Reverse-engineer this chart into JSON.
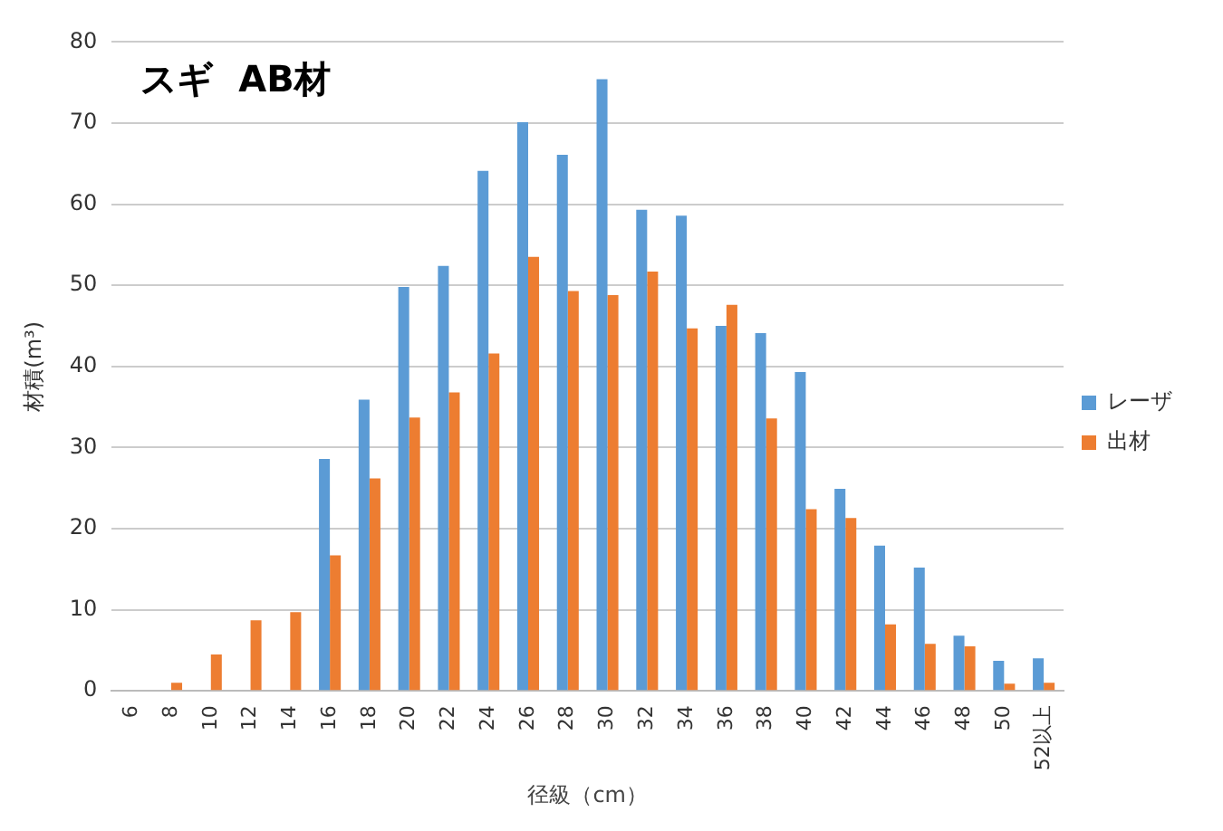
{
  "chart_data": {
    "type": "bar",
    "title": "スギ  AB材",
    "xlabel": "径級（cm）",
    "ylabel": "材積(m³)",
    "categories": [
      "6",
      "8",
      "10",
      "12",
      "14",
      "16",
      "18",
      "20",
      "22",
      "24",
      "26",
      "28",
      "30",
      "32",
      "34",
      "36",
      "38",
      "40",
      "42",
      "44",
      "46",
      "48",
      "50",
      "52以上"
    ],
    "series": [
      {
        "name": "レーザ",
        "color": "#5b9bd5",
        "values": [
          0,
          0,
          0,
          0,
          0,
          28.6,
          35.9,
          49.8,
          52.4,
          64.1,
          70.1,
          66.1,
          75.4,
          59.3,
          58.6,
          45.0,
          44.1,
          39.3,
          24.9,
          17.9,
          15.2,
          6.8,
          3.7,
          4.0
        ]
      },
      {
        "name": "出材",
        "color": "#ed7d31",
        "values": [
          0,
          1.0,
          4.5,
          8.7,
          9.7,
          16.7,
          26.2,
          33.7,
          36.8,
          41.6,
          53.5,
          49.3,
          48.8,
          51.7,
          44.7,
          47.6,
          33.6,
          22.4,
          21.3,
          8.2,
          5.8,
          5.5,
          0.9,
          1.0
        ]
      }
    ],
    "ylim": [
      0,
      80
    ],
    "yticks": [
      0,
      10,
      20,
      30,
      40,
      50,
      60,
      70,
      80
    ],
    "grid": "y",
    "legend": "right"
  }
}
